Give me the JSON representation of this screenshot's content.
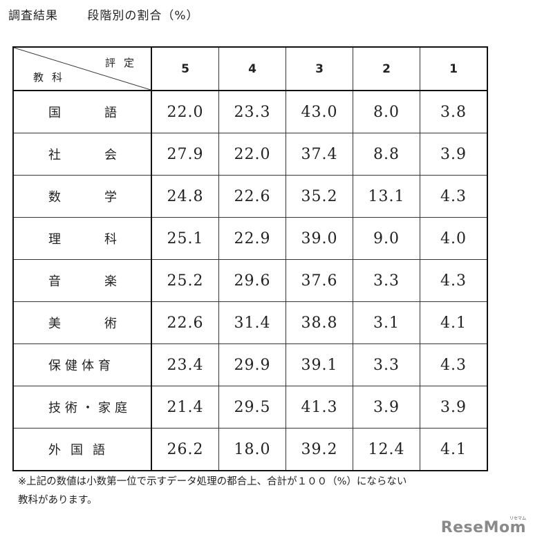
{
  "header": {
    "title": "調査結果",
    "subtitle": "段階別の割合（%）"
  },
  "table": {
    "corner_top": "評定",
    "corner_bottom": "教科",
    "columns": [
      "5",
      "4",
      "3",
      "2",
      "1"
    ],
    "rows": [
      {
        "subject": "国語",
        "values": [
          "22.0",
          "23.3",
          "43.0",
          "8.0",
          "3.8"
        ]
      },
      {
        "subject": "社会",
        "values": [
          "27.9",
          "22.0",
          "37.4",
          "8.8",
          "3.9"
        ]
      },
      {
        "subject": "数学",
        "values": [
          "24.8",
          "22.6",
          "35.2",
          "13.1",
          "4.3"
        ]
      },
      {
        "subject": "理科",
        "values": [
          "25.1",
          "22.9",
          "39.0",
          "9.0",
          "4.0"
        ]
      },
      {
        "subject": "音楽",
        "values": [
          "25.2",
          "29.6",
          "37.6",
          "3.3",
          "4.3"
        ]
      },
      {
        "subject": "美術",
        "values": [
          "22.6",
          "31.4",
          "38.8",
          "3.1",
          "4.1"
        ]
      },
      {
        "subject": "保健体育",
        "values": [
          "23.4",
          "29.9",
          "39.1",
          "3.3",
          "4.3"
        ]
      },
      {
        "subject": "技術・家庭",
        "values": [
          "21.4",
          "29.5",
          "41.3",
          "3.9",
          "3.9"
        ]
      },
      {
        "subject": "外国語",
        "values": [
          "26.2",
          "18.0",
          "39.2",
          "12.4",
          "4.1"
        ]
      }
    ]
  },
  "note": {
    "line1": "※上記の数値は小数第一位で示すデータ処理の都合上、合計が１００（%）にならない",
    "line2": "教科があります。"
  },
  "watermark": {
    "text": "ReseMom",
    "small": "リセマム"
  }
}
